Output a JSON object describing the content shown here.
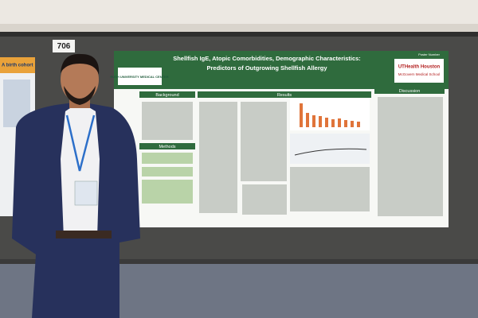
{
  "board_number": "706",
  "poster": {
    "number": "Poster Number",
    "title_line1": "Shellfish IgE, Atopic Comorbidities, Demographic Characteristics:",
    "title_line2": "Predictors of Outgrowing Shellfish Allergy",
    "left_logo": "RUSH UNIVERSITY MEDICAL CENTER",
    "right_logo": "UTHealth Houston",
    "right_logo_sub": "McGovern Medical School",
    "sections": [
      "Background",
      "Methods",
      "Results",
      "Discussion"
    ]
  },
  "side_poster": {
    "title": "A birth cohort"
  }
}
